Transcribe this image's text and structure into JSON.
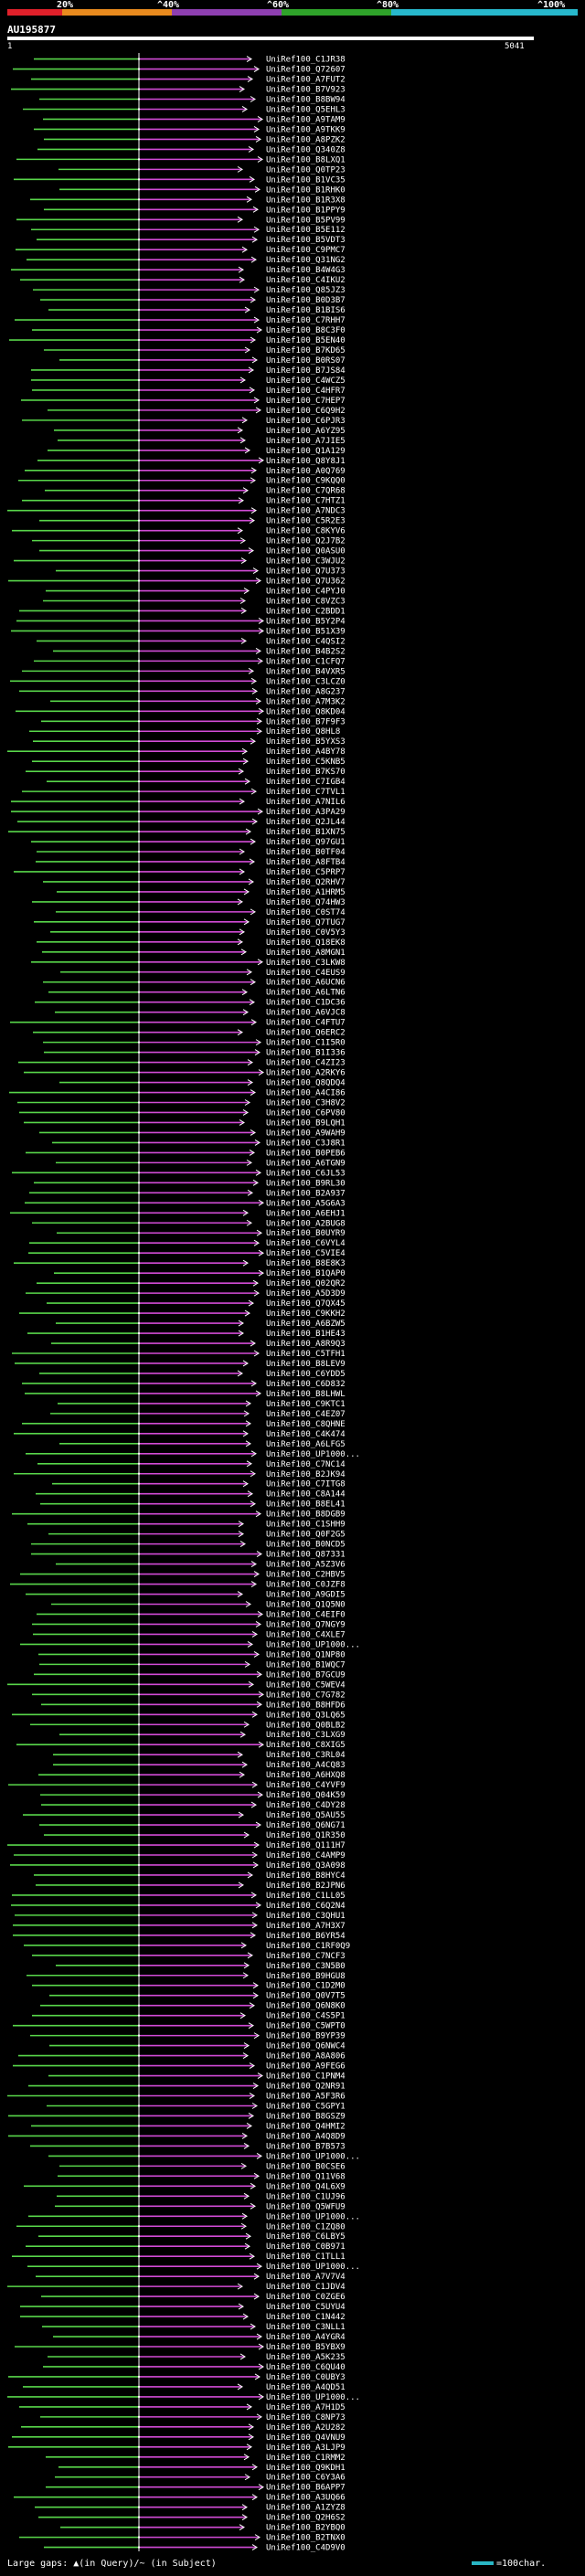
{
  "scale": {
    "labels": [
      "20%",
      "^40%",
      "^60%",
      "^80%",
      "^100%"
    ],
    "colors": [
      "#e0202a",
      "#e88a1e",
      "#8e3fb0",
      "#2fa32a",
      "#27b8cc"
    ]
  },
  "query": {
    "id": "AU195877",
    "start": "1",
    "end": "5041"
  },
  "legend": {
    "gaps_text": "Large gaps: ▲(in Query)/~ (in Subject)",
    "scale_text": "=100char."
  },
  "colors": {
    "green": "#58d64a",
    "magenta": "#d24bd6",
    "highlight": "#ffffff"
  },
  "hits": [
    "UniRef100_C1JR38",
    "UniRef100_Q72607",
    "UniRef100_A7FUT2",
    "UniRef100_B7V923",
    "UniRef100_B8BW94",
    "UniRef100_Q5EHL3",
    "UniRef100_A9TAM9",
    "UniRef100_A9TKK9",
    "UniRef100_A8PZK2",
    "UniRef100_Q340Z8",
    "UniRef100_B8LXQ1",
    "UniRef100_Q0TP23",
    "UniRef100_B1VC35",
    "UniRef100_B1RHK0",
    "UniRef100_B1R3X8",
    "UniRef100_B1PPY9",
    "UniRef100_B5PV99",
    "UniRef100_B5E112",
    "UniRef100_B5VDT3",
    "UniRef100_C9PMC7",
    "UniRef100_Q31NG2",
    "UniRef100_B4W4G3",
    "UniRef100_C4IKU2",
    "UniRef100_Q85JZ3",
    "UniRef100_B0D3B7",
    "UniRef100_B1BIS6",
    "UniRef100_C7RHH7",
    "UniRef100_B8C3F0",
    "UniRef100_B5EN40",
    "UniRef100_B7KD65",
    "UniRef100_B0RS07",
    "UniRef100_B7JS84",
    "UniRef100_C4WCZ5",
    "UniRef100_C4HFR7",
    "UniRef100_C7HEP7",
    "UniRef100_C6Q9H2",
    "UniRef100_C6PJR3",
    "UniRef100_A6YZ95",
    "UniRef100_A7JIE5",
    "UniRef100_Q1A129",
    "UniRef100_Q8Y8J1",
    "UniRef100_A0Q769",
    "UniRef100_C9KQQ0",
    "UniRef100_C7QR68",
    "UniRef100_C7HTZ1",
    "UniRef100_A7NDC3",
    "UniRef100_C5R2E3",
    "UniRef100_C8KYV6",
    "UniRef100_Q2J7B2",
    "UniRef100_Q0ASU0",
    "UniRef100_C3WJU2",
    "UniRef100_Q7U373",
    "UniRef100_Q7U362",
    "UniRef100_C4PYJ0",
    "UniRef100_C8VZC3",
    "UniRef100_C2BDD1",
    "UniRef100_B5Y2P4",
    "UniRef100_B51X39",
    "UniRef100_C4QSI2",
    "UniRef100_B4B2S2",
    "UniRef100_C1CFQ7",
    "UniRef100_B4VXR5",
    "UniRef100_C3LCZ0",
    "UniRef100_A8G237",
    "UniRef100_A7M3K2",
    "UniRef100_Q8KD04",
    "UniRef100_B7F9F3",
    "UniRef100_Q8HL8",
    "UniRef100_B5YXS3",
    "UniRef100_A4BY78",
    "UniRef100_C5KNB5",
    "UniRef100_B7KS70",
    "UniRef100_C7IGB4",
    "UniRef100_C7TVL1",
    "UniRef100_A7NIL6",
    "UniRef100_A3PA29",
    "UniRef100_Q2JL44",
    "UniRef100_B1XN75",
    "UniRef100_Q97GU1",
    "UniRef100_B0TF04",
    "UniRef100_A8FTB4",
    "UniRef100_C5PRP7",
    "UniRef100_Q2RHV7",
    "UniRef100_A1HRM5",
    "UniRef100_Q74HW3",
    "UniRef100_C0ST74",
    "UniRef100_Q7TUG7",
    "UniRef100_C0V5Y3",
    "UniRef100_Q18EK8",
    "UniRef100_A8MGN1",
    "UniRef100_C3LKW8",
    "UniRef100_C4EUS9",
    "UniRef100_A6UCN6",
    "UniRef100_A6LTN6",
    "UniRef100_C1DC36",
    "UniRef100_A6VJC8",
    "UniRef100_C4FTU7",
    "UniRef100_Q6ERC2",
    "UniRef100_C1I5R0",
    "UniRef100_B1I336",
    "UniRef100_C4ZI23",
    "UniRef100_A2RKY6",
    "UniRef100_Q8QDQ4",
    "UniRef100_A4CI86",
    "UniRef100_C3H8V2",
    "UniRef100_C6PV80",
    "UniRef100_B9LQH1",
    "UniRef100_A9WAH9",
    "UniRef100_C3J8R1",
    "UniRef100_B0PEB6",
    "UniRef100_A6TGN9",
    "UniRef100_C6JL53",
    "UniRef100_B9RL30",
    "UniRef100_B2A937",
    "UniRef100_A5G6A3",
    "UniRef100_A6EHJ1",
    "UniRef100_A2BUG8",
    "UniRef100_B0UYR9",
    "UniRef100_C6VYL4",
    "UniRef100_C5VIE4",
    "UniRef100_B8E8K3",
    "UniRef100_B1QAP0",
    "UniRef100_Q02QR2",
    "UniRef100_A5D3D9",
    "UniRef100_Q7QX45",
    "UniRef100_C9KKH2",
    "UniRef100_A6BZW5",
    "UniRef100_B1HE43",
    "UniRef100_A8R9Q3",
    "UniRef100_C5TFH1",
    "UniRef100_B8LEV9",
    "UniRef100_C6YDD5",
    "UniRef100_C6D832",
    "UniRef100_B8LHWL",
    "UniRef100_C9KTC1",
    "UniRef100_C4EZ07",
    "UniRef100_C8QHNE",
    "UniRef100_C4K474",
    "UniRef100_A6LFG5",
    "UniRef100_UP1000...",
    "UniRef100_C7NC14",
    "UniRef100_B2JK94",
    "UniRef100_C7ITG8",
    "UniRef100_C8A144",
    "UniRef100_B8EL41",
    "UniRef100_B8DGB9",
    "UniRef100_C1SHH9",
    "UniRef100_Q0F2G5",
    "UniRef100_B0NCD5",
    "UniRef100_Q87331",
    "UniRef100_A5Z3V6",
    "UniRef100_C2HBV5",
    "UniRef100_C0JZF8",
    "UniRef100_A9GDI5",
    "UniRef100_Q1Q5N0",
    "UniRef100_C4EIF0",
    "UniRef100_Q7NGY9",
    "UniRef100_C4XLE7",
    "UniRef100_UP1000...",
    "UniRef100_Q1NP80",
    "UniRef100_B1WQC7",
    "UniRef100_B7GCU9",
    "UniRef100_C5WEV4",
    "UniRef100_C7G782",
    "UniRef100_B8HFD6",
    "UniRef100_Q3LQ65",
    "UniRef100_Q0BLB2",
    "UniRef100_C3LXG9",
    "UniRef100_C8XIG5",
    "UniRef100_C3RL04",
    "UniRef100_A4CQ83",
    "UniRef100_A6HXQ8",
    "UniRef100_C4YVF9",
    "UniRef100_Q04K59",
    "UniRef100_C4DY28",
    "UniRef100_Q5AU55",
    "UniRef100_Q6NG71",
    "UniRef100_Q1R350",
    "UniRef100_Q111H7",
    "UniRef100_C4AMP9",
    "UniRef100_Q3A098",
    "UniRef100_B8HYC4",
    "UniRef100_B2JPN6",
    "UniRef100_C1LL05",
    "UniRef100_C6Q2N4",
    "UniRef100_C3QHU1",
    "UniRef100_A7H3X7",
    "UniRef100_B6YR54",
    "UniRef100_C1RF0Q9",
    "UniRef100_C7NCF3",
    "UniRef100_C3N5B0",
    "UniRef100_B9HGU8",
    "UniRef100_C1D2M0",
    "UniRef100_Q0V7T5",
    "UniRef100_Q6N8K0",
    "UniRef100_C4S5P1",
    "UniRef100_C5WPT0",
    "UniRef100_B9YP39",
    "UniRef100_Q6NWC4",
    "UniRef100_A8A806",
    "UniRef100_A9FEG6",
    "UniRef100_C1PNM4",
    "UniRef100_Q2NR91",
    "UniRef100_A5F3R6",
    "UniRef100_C5GPY1",
    "UniRef100_B8GSZ9",
    "UniRef100_Q4HMI2",
    "UniRef100_A4Q8D9",
    "UniRef100_B7B573",
    "UniRef100_UP1000...",
    "UniRef100_B0CSE6",
    "UniRef100_Q11V68",
    "UniRef100_Q4L6X9",
    "UniRef100_C1UJ96",
    "UniRef100_Q5WFU9",
    "UniRef100_UP1000...",
    "UniRef100_C1ZQ80",
    "UniRef100_C6LBY5",
    "UniRef100_C0B971",
    "UniRef100_C1TLL1",
    "UniRef100_UP1000...",
    "UniRef100_A7V7V4",
    "UniRef100_C1JDV4",
    "UniRef100_C0ZGE6",
    "UniRef100_C5UYU4",
    "UniRef100_C1N442",
    "UniRef100_C3NLL1",
    "UniRef100_A4YGR4",
    "UniRef100_B5YBX9",
    "UniRef100_A5K235",
    "UniRef100_C6QU40",
    "UniRef100_C0UBY3",
    "UniRef100_A4QD51",
    "UniRef100_UP1000...",
    "UniRef100_A7H1D5",
    "UniRef100_C8NP73",
    "UniRef100_A2U282",
    "UniRef100_Q4VNU9",
    "UniRef100_A3LJP9",
    "UniRef100_C1RMM2",
    "UniRef100_Q9KDH1",
    "UniRef100_C6Y3A6",
    "UniRef100_B6APP7",
    "UniRef100_A3UQ66",
    "UniRef100_A1ZYZ8",
    "UniRef100_Q2H6S2",
    "UniRef100_B2YBQ0",
    "UniRef100_B2TNX0",
    "UniRef100_C4D9V0"
  ]
}
